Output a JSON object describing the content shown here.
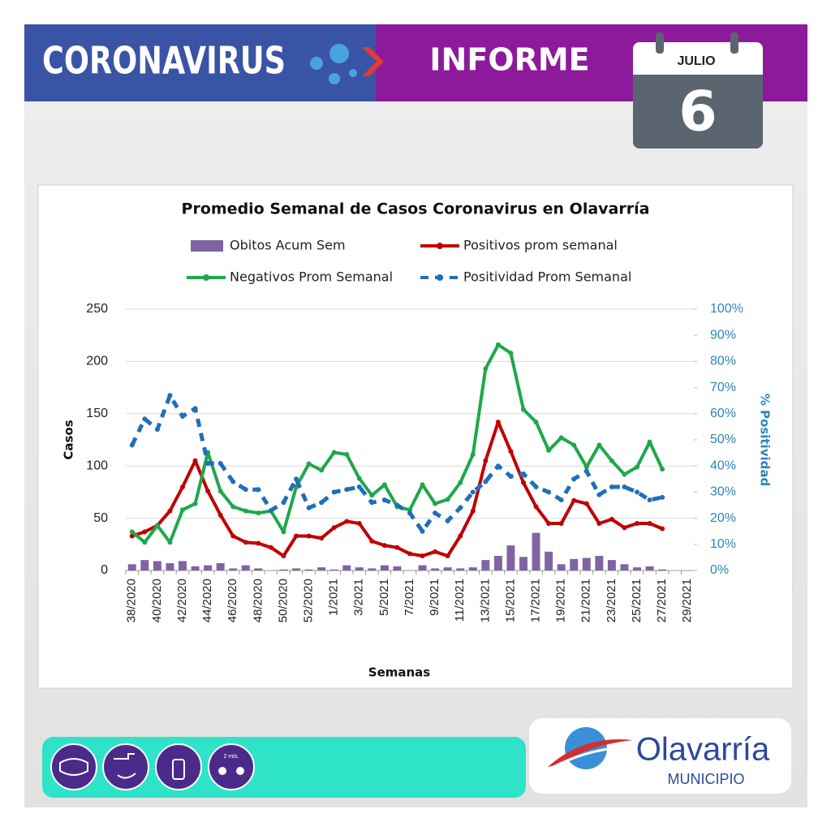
{
  "header": {
    "title": "CORONAVIRUS",
    "subtitle": "INFORME",
    "month": "JULIO",
    "day": "6"
  },
  "footer": {
    "distance": "2 mts.",
    "brand": "Olavarría",
    "brand_sub": "MUNICIPIO"
  },
  "chart_data": {
    "type": "bar+line",
    "title": "Promedio Semanal de Casos Coronavirus en Olavarría",
    "x_label": "Semanas",
    "y_label": "Casos",
    "y2_label": "% Positividad",
    "legend": "top",
    "grid": true,
    "categories": [
      "38/2020",
      null,
      "40/2020",
      null,
      "42/2020",
      null,
      "44/2020",
      null,
      "46/2020",
      null,
      "48/2020",
      null,
      "50/2020",
      null,
      "52/2020",
      null,
      "1/2021",
      null,
      "3/2021",
      null,
      "5/2021",
      null,
      "7/2021",
      null,
      "9/2021",
      null,
      "11/2021",
      null,
      "13/2021",
      null,
      "15/2021",
      null,
      "17/2021",
      null,
      "19/2021",
      null,
      "21/2021",
      null,
      "23/2021",
      null,
      "25/2021",
      null,
      "27/2021",
      null,
      "29/2021"
    ],
    "ylim": [
      0,
      250
    ],
    "yticks": [
      0,
      50,
      100,
      150,
      200,
      250
    ],
    "y2lim": [
      0,
      100
    ],
    "y2ticks": [
      {
        "value": 0,
        "label": "0%"
      },
      {
        "value": 10,
        "label": "10%"
      },
      {
        "value": 20,
        "label": "20%"
      },
      {
        "value": 30,
        "label": "30%"
      },
      {
        "value": 40,
        "label": "40%"
      },
      {
        "value": 50,
        "label": "50%"
      },
      {
        "value": 60,
        "label": "60%"
      },
      {
        "value": 70,
        "label": "70%"
      },
      {
        "value": 80,
        "label": "80%"
      },
      {
        "value": 90,
        "label": "90%"
      },
      {
        "value": 100,
        "label": "100%"
      }
    ],
    "series": [
      {
        "name": "Obitos Acum Sem",
        "type": "bar",
        "color": "#8064a2",
        "values": [
          6,
          10,
          9,
          7,
          9,
          4,
          5,
          7,
          2,
          5,
          2,
          0,
          1,
          2,
          1,
          3,
          1,
          5,
          3,
          2,
          5,
          4,
          0,
          5,
          2,
          3,
          2,
          3,
          10,
          14,
          24,
          13,
          36,
          18,
          6,
          11,
          12,
          14,
          10,
          6,
          3,
          4,
          1,
          null,
          null
        ]
      },
      {
        "name": "Positivos prom semanal",
        "type": "line",
        "color": "#c00000",
        "values": [
          33,
          37,
          43,
          57,
          80,
          105,
          76,
          53,
          33,
          27,
          26,
          22,
          14,
          33,
          33,
          31,
          41,
          47,
          45,
          28,
          24,
          22,
          16,
          14,
          18,
          14,
          33,
          57,
          105,
          142,
          114,
          84,
          61,
          45,
          45,
          67,
          64,
          45,
          49,
          41,
          45,
          45,
          40,
          null,
          null
        ]
      },
      {
        "name": "Negativos Prom Semanal",
        "type": "line",
        "color": "#1ea84a",
        "values": [
          37,
          27,
          43,
          27,
          58,
          64,
          113,
          76,
          61,
          57,
          55,
          57,
          37,
          80,
          102,
          96,
          113,
          111,
          88,
          72,
          82,
          61,
          58,
          82,
          64,
          68,
          84,
          111,
          193,
          216,
          208,
          154,
          142,
          115,
          127,
          120,
          99,
          120,
          105,
          92,
          99,
          123,
          97,
          null,
          null
        ]
      },
      {
        "name": "Positividad Prom Semanal",
        "type": "line",
        "axis": "y2",
        "dashed": true,
        "color": "#1f6fb8",
        "values": [
          48,
          58,
          54,
          67,
          59,
          62,
          41,
          41,
          34,
          31,
          31,
          23,
          26,
          35,
          24,
          26,
          30,
          31,
          32,
          26,
          27,
          25,
          22,
          15,
          22,
          19,
          24,
          30,
          34,
          40,
          36,
          37,
          32,
          30,
          27,
          35,
          38,
          29,
          32,
          32,
          30,
          27,
          28,
          null,
          null
        ]
      }
    ]
  }
}
